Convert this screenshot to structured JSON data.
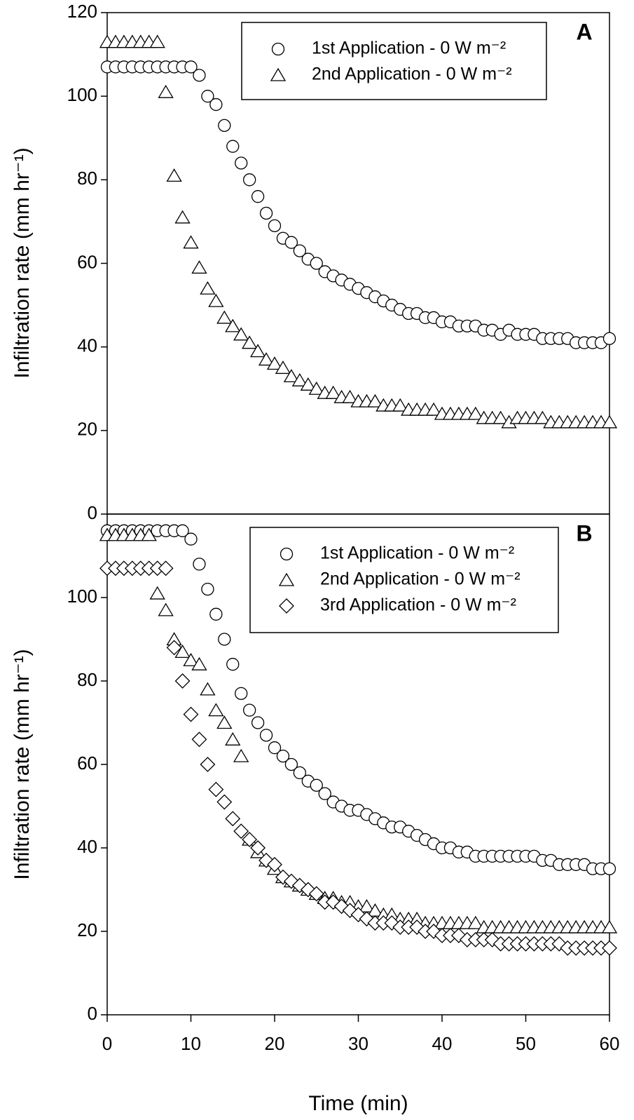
{
  "chart_data": [
    {
      "type": "scatter",
      "annotation": "A",
      "ylabel": "Infiltration rate (mm hr⁻¹)",
      "x": [
        0,
        1,
        2,
        3,
        4,
        5,
        6,
        7,
        8,
        9,
        10,
        11,
        12,
        13,
        14,
        15,
        16,
        17,
        18,
        19,
        20,
        21,
        22,
        23,
        24,
        25,
        26,
        27,
        28,
        29,
        30,
        31,
        32,
        33,
        34,
        35,
        36,
        37,
        38,
        39,
        40,
        41,
        42,
        43,
        44,
        45,
        46,
        47,
        48,
        49,
        50,
        51,
        52,
        53,
        54,
        55,
        56,
        57,
        58,
        59,
        60
      ],
      "xlim": [
        0,
        60
      ],
      "ylim": [
        0,
        120
      ],
      "yticks": [
        0,
        20,
        40,
        60,
        80,
        100,
        120
      ],
      "series": [
        {
          "name": "1st Application - 0 W m⁻²",
          "marker": "circle",
          "color": "#000000",
          "values": [
            107,
            107,
            107,
            107,
            107,
            107,
            107,
            107,
            107,
            107,
            107,
            105,
            100,
            98,
            93,
            88,
            84,
            80,
            76,
            72,
            69,
            66,
            65,
            63,
            61,
            60,
            58,
            57,
            56,
            55,
            54,
            53,
            52,
            51,
            50,
            49,
            48,
            48,
            47,
            47,
            46,
            46,
            45,
            45,
            45,
            44,
            44,
            43,
            44,
            43,
            43,
            43,
            42,
            42,
            42,
            42,
            41,
            41,
            41,
            41,
            42
          ]
        },
        {
          "name": "2nd Application - 0 W m⁻²",
          "marker": "triangle",
          "color": "#000000",
          "values": [
            113,
            113,
            113,
            113,
            113,
            113,
            113,
            101,
            81,
            71,
            65,
            59,
            54,
            51,
            47,
            45,
            43,
            41,
            39,
            37,
            36,
            35,
            33,
            32,
            31,
            30,
            29,
            29,
            28,
            28,
            27,
            27,
            27,
            26,
            26,
            26,
            25,
            25,
            25,
            25,
            24,
            24,
            24,
            24,
            24,
            23,
            23,
            23,
            22,
            23,
            23,
            23,
            23,
            22,
            22,
            22,
            22,
            22,
            22,
            22,
            22
          ]
        }
      ]
    },
    {
      "type": "scatter",
      "annotation": "B",
      "ylabel": "Infiltration rate (mm hr⁻¹)",
      "xlabel": "Time (min)",
      "x": [
        0,
        1,
        2,
        3,
        4,
        5,
        6,
        7,
        8,
        9,
        10,
        11,
        12,
        13,
        14,
        15,
        16,
        17,
        18,
        19,
        20,
        21,
        22,
        23,
        24,
        25,
        26,
        27,
        28,
        29,
        30,
        31,
        32,
        33,
        34,
        35,
        36,
        37,
        38,
        39,
        40,
        41,
        42,
        43,
        44,
        45,
        46,
        47,
        48,
        49,
        50,
        51,
        52,
        53,
        54,
        55,
        56,
        57,
        58,
        59,
        60
      ],
      "xlim": [
        0,
        60
      ],
      "xticks": [
        0,
        10,
        20,
        30,
        40,
        50,
        60
      ],
      "ylim": [
        0,
        120
      ],
      "yticks": [
        0,
        20,
        40,
        60,
        80,
        100
      ],
      "series": [
        {
          "name": "1st Application - 0 W m⁻²",
          "marker": "circle",
          "color": "#000000",
          "values": [
            116,
            116,
            116,
            116,
            116,
            116,
            116,
            116,
            116,
            116,
            114,
            108,
            102,
            96,
            90,
            84,
            77,
            73,
            70,
            67,
            64,
            62,
            60,
            58,
            56,
            55,
            53,
            51,
            50,
            49,
            49,
            48,
            47,
            46,
            45,
            45,
            44,
            43,
            42,
            41,
            40,
            40,
            39,
            39,
            38,
            38,
            38,
            38,
            38,
            38,
            38,
            38,
            37,
            37,
            36,
            36,
            36,
            36,
            35,
            35,
            35
          ]
        },
        {
          "name": "2nd Application - 0 W m⁻²",
          "marker": "triangle",
          "color": "#000000",
          "values": [
            115,
            115,
            115,
            115,
            115,
            115,
            101,
            97,
            90,
            87,
            85,
            84,
            78,
            73,
            70,
            66,
            62,
            42,
            39,
            37,
            35,
            33,
            32,
            31,
            30,
            29,
            28,
            28,
            27,
            27,
            26,
            26,
            25,
            24,
            24,
            23,
            23,
            23,
            22,
            22,
            22,
            22,
            22,
            22,
            22,
            21,
            21,
            21,
            21,
            21,
            21,
            21,
            21,
            21,
            21,
            21,
            21,
            21,
            21,
            21,
            21
          ]
        },
        {
          "name": "3rd Application - 0 W m⁻²",
          "marker": "diamond",
          "color": "#000000",
          "values": [
            107,
            107,
            107,
            107,
            107,
            107,
            107,
            107,
            88,
            80,
            72,
            66,
            60,
            54,
            51,
            47,
            44,
            42,
            40,
            37,
            36,
            33,
            32,
            31,
            30,
            29,
            27,
            27,
            26,
            25,
            24,
            23,
            22,
            22,
            22,
            21,
            21,
            21,
            20,
            20,
            19,
            19,
            19,
            18,
            18,
            18,
            18,
            17,
            17,
            17,
            17,
            17,
            17,
            17,
            17,
            16,
            16,
            16,
            16,
            16,
            16
          ]
        }
      ]
    }
  ]
}
